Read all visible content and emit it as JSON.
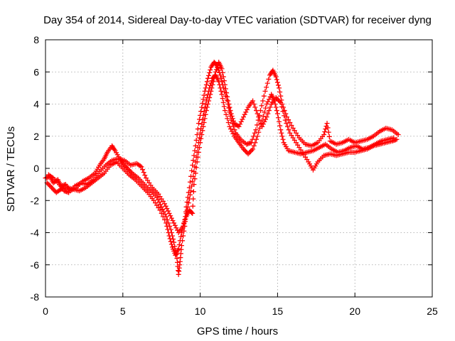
{
  "chart_data": {
    "type": "scatter",
    "title": "Day 354 of 2014, Sidereal Day-to-day VTEC variation (SDTVAR) for receiver dyng",
    "xlabel": "GPS time / hours",
    "ylabel": "SDTVAR / TECUs",
    "xlim": [
      0,
      25
    ],
    "ylim": [
      -8,
      8
    ],
    "xticks": [
      "0",
      "5",
      "10",
      "15",
      "20",
      "25"
    ],
    "yticks": [
      "-8",
      "-6",
      "-4",
      "-2",
      "0",
      "2",
      "4",
      "6",
      "8"
    ],
    "grid": true,
    "marker": "plus",
    "color": "#ff0000",
    "series": [
      {
        "points": [
          [
            0.0,
            -0.6
          ],
          [
            0.3,
            -0.5
          ],
          [
            0.5,
            -0.9
          ],
          [
            0.8,
            -0.7
          ],
          [
            1.0,
            -1.1
          ],
          [
            1.3,
            -1.0
          ],
          [
            1.6,
            -1.4
          ],
          [
            2.0,
            -1.2
          ],
          [
            2.4,
            -0.8
          ],
          [
            2.8,
            -0.6
          ],
          [
            3.2,
            -0.3
          ],
          [
            3.5,
            0.2
          ],
          [
            3.8,
            0.6
          ],
          [
            4.0,
            1.0
          ],
          [
            4.3,
            1.4
          ],
          [
            4.5,
            1.1
          ],
          [
            4.8,
            0.6
          ],
          [
            5.0,
            0.3
          ],
          [
            5.3,
            0.0
          ],
          [
            5.6,
            -0.3
          ],
          [
            6.0,
            -0.6
          ],
          [
            6.4,
            -1.0
          ],
          [
            6.8,
            -1.4
          ],
          [
            7.2,
            -1.8
          ],
          [
            7.5,
            -2.4
          ],
          [
            7.8,
            -3.0
          ],
          [
            8.1,
            -3.8
          ],
          [
            8.3,
            -4.6
          ],
          [
            8.5,
            -5.6
          ],
          [
            8.6,
            -6.6
          ],
          [
            8.7,
            -5.8
          ],
          [
            8.8,
            -4.8
          ],
          [
            9.0,
            -3.6
          ],
          [
            9.1,
            -2.4
          ],
          [
            9.3,
            -1.2
          ],
          [
            9.5,
            0.2
          ],
          [
            9.7,
            1.4
          ],
          [
            9.9,
            2.8
          ],
          [
            10.1,
            3.8
          ],
          [
            10.3,
            4.8
          ],
          [
            10.5,
            5.6
          ],
          [
            10.7,
            6.3
          ],
          [
            10.9,
            6.6
          ],
          [
            11.1,
            6.4
          ],
          [
            11.3,
            5.8
          ],
          [
            11.5,
            5.0
          ],
          [
            11.8,
            4.0
          ],
          [
            12.0,
            3.0
          ],
          [
            12.3,
            2.2
          ],
          [
            12.6,
            1.8
          ],
          [
            13.0,
            1.5
          ],
          [
            13.3,
            1.6
          ],
          [
            13.6,
            2.4
          ],
          [
            13.9,
            3.6
          ],
          [
            14.2,
            4.8
          ],
          [
            14.5,
            5.8
          ],
          [
            14.7,
            6.1
          ],
          [
            14.9,
            5.7
          ],
          [
            15.1,
            5.0
          ],
          [
            15.3,
            4.0
          ],
          [
            15.6,
            3.2
          ],
          [
            16.0,
            2.5
          ],
          [
            16.4,
            1.9
          ],
          [
            16.8,
            1.5
          ],
          [
            17.2,
            1.4
          ],
          [
            17.6,
            1.6
          ],
          [
            18.0,
            2.1
          ],
          [
            18.2,
            2.8
          ],
          [
            18.4,
            1.7
          ],
          [
            18.8,
            1.5
          ],
          [
            19.2,
            1.6
          ],
          [
            19.6,
            1.8
          ],
          [
            20.0,
            1.6
          ],
          [
            20.4,
            1.7
          ],
          [
            20.8,
            1.8
          ],
          [
            21.2,
            2.0
          ],
          [
            21.6,
            2.3
          ],
          [
            22.0,
            2.5
          ],
          [
            22.4,
            2.4
          ],
          [
            22.8,
            2.1
          ]
        ]
      },
      {
        "points": [
          [
            0.1,
            -0.9
          ],
          [
            0.4,
            -1.2
          ],
          [
            0.7,
            -1.5
          ],
          [
            1.0,
            -1.3
          ],
          [
            1.4,
            -1.2
          ],
          [
            1.8,
            -1.3
          ],
          [
            2.2,
            -1.4
          ],
          [
            2.6,
            -1.2
          ],
          [
            3.0,
            -0.9
          ],
          [
            3.4,
            -0.6
          ],
          [
            3.8,
            -0.3
          ],
          [
            4.2,
            0.2
          ],
          [
            4.6,
            0.4
          ],
          [
            5.0,
            0.0
          ],
          [
            5.4,
            -0.4
          ],
          [
            5.8,
            -0.7
          ],
          [
            6.2,
            -1.1
          ],
          [
            6.6,
            -1.5
          ],
          [
            7.0,
            -2.0
          ],
          [
            7.4,
            -2.6
          ],
          [
            7.8,
            -3.4
          ],
          [
            8.0,
            -4.2
          ],
          [
            8.2,
            -4.9
          ],
          [
            8.4,
            -5.4
          ],
          [
            8.6,
            -5.0
          ],
          [
            8.8,
            -4.0
          ],
          [
            9.0,
            -3.2
          ],
          [
            9.2,
            -2.4
          ],
          [
            9.4,
            -1.4
          ],
          [
            9.6,
            -0.2
          ],
          [
            9.8,
            1.0
          ],
          [
            10.0,
            2.2
          ],
          [
            10.2,
            3.3
          ],
          [
            10.4,
            4.2
          ],
          [
            10.6,
            5.0
          ],
          [
            10.8,
            5.6
          ],
          [
            11.0,
            5.8
          ],
          [
            11.2,
            5.4
          ],
          [
            11.4,
            4.6
          ],
          [
            11.6,
            3.6
          ],
          [
            11.9,
            2.6
          ],
          [
            12.2,
            2.0
          ],
          [
            12.5,
            1.6
          ],
          [
            12.8,
            1.2
          ],
          [
            13.1,
            0.9
          ],
          [
            13.4,
            1.2
          ],
          [
            13.7,
            2.0
          ],
          [
            14.0,
            3.0
          ],
          [
            14.3,
            4.0
          ],
          [
            14.6,
            4.6
          ],
          [
            14.8,
            4.2
          ],
          [
            15.0,
            3.4
          ],
          [
            15.2,
            2.4
          ],
          [
            15.4,
            1.6
          ],
          [
            15.7,
            1.1
          ],
          [
            16.1,
            1.0
          ],
          [
            16.5,
            0.9
          ],
          [
            16.9,
            1.0
          ],
          [
            17.3,
            1.1
          ],
          [
            17.7,
            1.3
          ],
          [
            18.1,
            1.5
          ],
          [
            18.5,
            1.2
          ],
          [
            18.9,
            1.0
          ],
          [
            19.3,
            1.1
          ],
          [
            19.7,
            1.3
          ],
          [
            20.1,
            1.4
          ],
          [
            20.5,
            1.2
          ],
          [
            20.9,
            1.3
          ],
          [
            21.3,
            1.5
          ],
          [
            21.7,
            1.7
          ],
          [
            22.1,
            1.8
          ],
          [
            22.5,
            1.9
          ]
        ]
      },
      {
        "points": [
          [
            0.2,
            -0.4
          ],
          [
            0.5,
            -0.6
          ],
          [
            0.9,
            -1.0
          ],
          [
            1.2,
            -1.4
          ],
          [
            1.5,
            -1.5
          ],
          [
            1.9,
            -1.1
          ],
          [
            2.3,
            -0.9
          ],
          [
            2.7,
            -1.0
          ],
          [
            3.1,
            -0.7
          ],
          [
            3.5,
            -0.2
          ],
          [
            3.9,
            0.2
          ],
          [
            4.3,
            0.5
          ],
          [
            4.7,
            0.6
          ],
          [
            5.1,
            0.5
          ],
          [
            5.5,
            0.2
          ],
          [
            5.9,
            0.3
          ],
          [
            6.2,
            0.1
          ],
          [
            6.5,
            -0.6
          ],
          [
            6.9,
            -1.2
          ],
          [
            7.3,
            -1.6
          ],
          [
            7.7,
            -2.2
          ],
          [
            8.0,
            -2.8
          ],
          [
            8.3,
            -3.4
          ],
          [
            8.6,
            -4.0
          ],
          [
            8.9,
            -3.6
          ],
          [
            9.1,
            -3.0
          ],
          [
            9.3,
            -2.6
          ],
          [
            9.5,
            -2.8
          ],
          [
            9.6,
            -1.0
          ],
          [
            9.8,
            0.4
          ],
          [
            10.0,
            1.6
          ],
          [
            10.2,
            2.6
          ],
          [
            10.4,
            3.6
          ],
          [
            10.6,
            4.4
          ],
          [
            10.8,
            5.2
          ],
          [
            11.0,
            6.0
          ],
          [
            11.2,
            6.6
          ],
          [
            11.4,
            6.2
          ],
          [
            11.6,
            5.2
          ],
          [
            11.8,
            4.2
          ],
          [
            12.0,
            3.4
          ],
          [
            12.2,
            2.8
          ],
          [
            12.5,
            2.6
          ],
          [
            12.8,
            3.2
          ],
          [
            13.1,
            3.8
          ],
          [
            13.4,
            4.2
          ],
          [
            13.7,
            3.4
          ],
          [
            14.0,
            2.6
          ],
          [
            14.3,
            3.2
          ],
          [
            14.6,
            4.0
          ],
          [
            14.9,
            4.4
          ],
          [
            15.2,
            4.1
          ],
          [
            15.5,
            3.0
          ],
          [
            15.8,
            2.2
          ],
          [
            16.2,
            1.6
          ],
          [
            16.6,
            1.0
          ],
          [
            17.0,
            0.4
          ],
          [
            17.3,
            -0.1
          ],
          [
            17.6,
            0.4
          ],
          [
            18.0,
            0.8
          ],
          [
            18.4,
            0.9
          ],
          [
            18.8,
            0.8
          ],
          [
            19.2,
            0.9
          ],
          [
            19.6,
            1.0
          ],
          [
            20.0,
            1.0
          ],
          [
            20.4,
            1.1
          ],
          [
            20.8,
            1.2
          ],
          [
            21.2,
            1.4
          ],
          [
            21.6,
            1.5
          ],
          [
            22.0,
            1.6
          ],
          [
            22.4,
            1.7
          ],
          [
            22.7,
            1.8
          ]
        ]
      }
    ]
  }
}
